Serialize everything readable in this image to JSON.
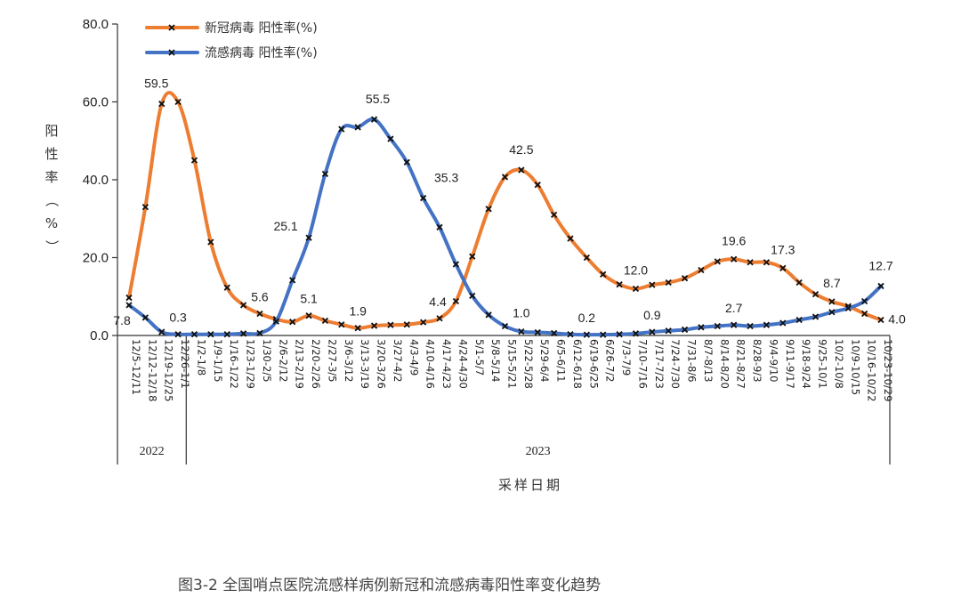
{
  "caption": "图3-2 全国哨点医院流感样病例新冠和流感病毒阳性率变化趋势",
  "chart_data": {
    "type": "line",
    "ylabel": "阳性率（%）",
    "xlabel": "采样日期",
    "ylim": [
      0,
      80
    ],
    "yticks": [
      "0.0",
      "20.0",
      "40.0",
      "60.0",
      "80.0"
    ],
    "legend_position": "top-left",
    "categories": [
      "12/5-12/11",
      "12/12-12/18",
      "12/19-12/25",
      "12/26-1/1",
      "1/2-1/8",
      "1/9-1/15",
      "1/16-1/22",
      "1/23-1/29",
      "1/30-2/5",
      "2/6-2/12",
      "2/13-2/19",
      "2/20-2/26",
      "2/27-3/5",
      "3/6-3/12",
      "3/13-3/19",
      "3/20-3/26",
      "3/27-4/2",
      "4/3-4/9",
      "4/10-4/16",
      "4/17-4/23",
      "4/24-4/30",
      "5/1-5/7",
      "5/8-5/14",
      "5/15-5/21",
      "5/22-5/28",
      "5/29-6/4",
      "6/5-6/11",
      "6/12-6/18",
      "6/19-6/25",
      "6/26-7/2",
      "7/3-7/9",
      "7/10-7/16",
      "7/17-7/23",
      "7/24-7/30",
      "7/31-8/6",
      "8/7-8/13",
      "8/14-8/20",
      "8/21-8/27",
      "8/28-9/3",
      "9/4-9/10",
      "9/11-9/17",
      "9/18-9/24",
      "9/25-10/1",
      "10/2-10/8",
      "10/9-10/15",
      "10/16-10/22",
      "10/23-10/29"
    ],
    "year_groups": [
      {
        "label": "2022",
        "start": 0,
        "end": 3
      },
      {
        "label": "2023",
        "start": 4,
        "end": 46
      }
    ],
    "series": [
      {
        "name": "新冠病毒 阳性率(%)",
        "color": "#ED7D31",
        "values": [
          9.7,
          33.0,
          59.5,
          60.0,
          45.0,
          24.0,
          12.3,
          7.8,
          5.6,
          4.2,
          3.5,
          5.1,
          3.8,
          2.8,
          1.9,
          2.5,
          2.7,
          2.8,
          3.4,
          4.4,
          8.8,
          20.3,
          32.5,
          40.7,
          42.5,
          38.7,
          31.0,
          24.9,
          20.0,
          15.7,
          13.1,
          12.0,
          13.0,
          13.6,
          14.7,
          16.8,
          19.0,
          19.6,
          18.8,
          18.8,
          17.3,
          13.6,
          10.6,
          8.7,
          7.5,
          5.6,
          4.0
        ],
        "labels": {
          "2": "59.5",
          "8": "5.6",
          "11": "5.1",
          "14": "1.9",
          "19": "4.4",
          "24": "42.5",
          "31": "12.0",
          "37": "19.6",
          "40": "17.3",
          "43": "8.7",
          "46": "4.0"
        }
      },
      {
        "name": "流感病毒 阳性率(%)",
        "color": "#4472C4",
        "values": [
          7.8,
          4.6,
          0.9,
          0.3,
          0.3,
          0.3,
          0.3,
          0.5,
          0.6,
          3.6,
          14.2,
          25.1,
          41.5,
          53.0,
          53.5,
          55.5,
          50.5,
          44.5,
          35.3,
          27.8,
          18.3,
          10.2,
          5.3,
          2.4,
          1.0,
          0.8,
          0.6,
          0.3,
          0.2,
          0.2,
          0.3,
          0.5,
          0.9,
          1.2,
          1.5,
          2.1,
          2.4,
          2.7,
          2.4,
          2.7,
          3.2,
          4.0,
          4.8,
          6.0,
          7.0,
          8.8,
          12.7
        ],
        "labels": {
          "0": "7.8",
          "3": "0.3",
          "11": "25.1",
          "15": "55.5",
          "18": "35.3",
          "24": "1.0",
          "28": "0.2",
          "32": "0.9",
          "37": "2.7",
          "46": "12.7"
        }
      }
    ]
  }
}
